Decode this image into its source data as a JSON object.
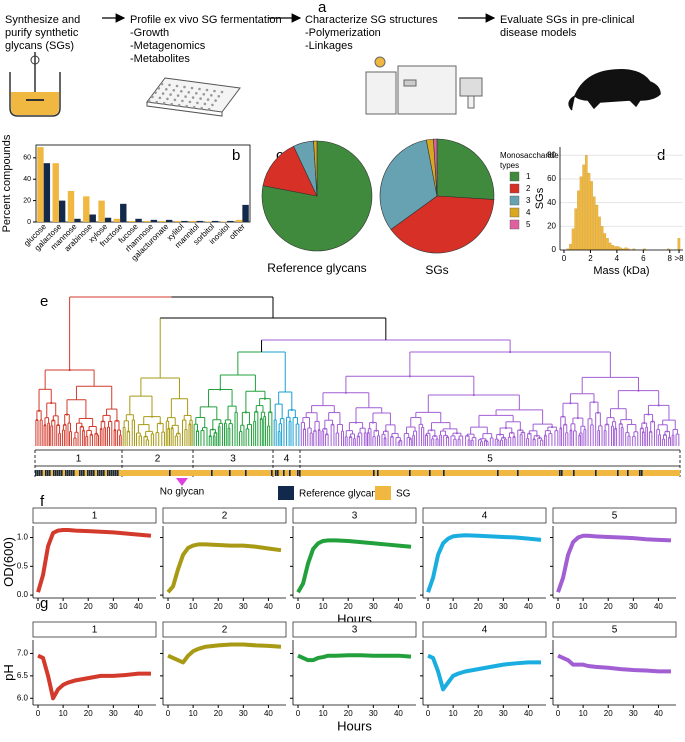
{
  "panel_labels": [
    "a",
    "b",
    "c",
    "d",
    "e",
    "f",
    "g"
  ],
  "workflow": [
    {
      "lines": [
        "Synthesize and",
        "purify synthetic",
        "glycans (SGs)"
      ]
    },
    {
      "lines": [
        "Profile ex vivo SG fermentation",
        "-Growth",
        "-Metagenomics",
        "-Metabolites"
      ]
    },
    {
      "lines": [
        "Characterize SG structures",
        "-Polymerization",
        "-Linkages"
      ]
    },
    {
      "lines": [
        "Evaluate SGs in pre-clinical",
        "disease models"
      ]
    }
  ],
  "dendrogram": {
    "clusters": [
      {
        "label": "1",
        "color": "#d33a2c"
      },
      {
        "label": "2",
        "color": "#a89a14"
      },
      {
        "label": "3",
        "color": "#22a03c"
      },
      {
        "label": "4",
        "color": "#1a9fd0"
      },
      {
        "label": "5",
        "color": "#a25fd4"
      }
    ],
    "annotation": "No glycan"
  },
  "chart_data": [
    {
      "type": "bar",
      "ylabel": "Percent compounds",
      "categories": [
        "glucose",
        "galactose",
        "mannose",
        "arabinose",
        "xylose",
        "fructose",
        "fucose",
        "rhamnose",
        "galacturonate",
        "xylitol",
        "mannitol",
        "sorbitol",
        "inositol",
        "other"
      ],
      "series": [
        {
          "name": "Reference glycan",
          "color": "#13294b",
          "values": [
            55,
            20,
            3,
            7,
            4,
            17,
            3,
            2,
            2,
            1,
            1,
            1,
            1,
            16
          ]
        },
        {
          "name": "SG",
          "color": "#f0b840",
          "values": [
            70,
            55,
            29,
            24,
            20,
            3,
            1,
            1,
            1,
            1,
            1,
            0.5,
            0.5,
            2
          ]
        }
      ],
      "ylim": [
        0,
        72
      ],
      "yticks": [
        0,
        20,
        40,
        60
      ]
    },
    {
      "type": "pie",
      "title": "Reference glycans",
      "categories": [
        "1",
        "2",
        "3",
        "4",
        "5"
      ],
      "values": [
        78,
        15,
        6,
        1,
        0
      ],
      "colors": [
        "#3f8a3c",
        "#d63027",
        "#66a2b2",
        "#d9a820",
        "#e060a0"
      ]
    },
    {
      "type": "pie",
      "title": "SGs",
      "legend_title": [
        "Monosaccharide",
        "types"
      ],
      "categories": [
        "1",
        "2",
        "3",
        "4",
        "5"
      ],
      "values": [
        26,
        39,
        32,
        2,
        1
      ],
      "colors": [
        "#3f8a3c",
        "#d63027",
        "#66a2b2",
        "#d9a820",
        "#e060a0"
      ]
    },
    {
      "type": "histogram",
      "xlabel": "Mass (kDa)",
      "ylabel": "SGs",
      "color": "#f0b840",
      "bins": [
        0,
        0.2,
        0.4,
        0.6,
        0.8,
        1.0,
        1.2,
        1.4,
        1.6,
        1.8,
        2.0,
        2.2,
        2.4,
        2.6,
        2.8,
        3.0,
        3.2,
        3.4,
        3.6,
        3.8,
        4.0,
        4.2,
        4.4,
        4.6,
        4.8,
        5.0,
        5.2,
        5.4,
        5.6,
        5.8,
        6.0,
        6.2,
        6.4,
        6.6,
        6.8,
        7.0,
        7.2,
        7.4,
        7.6,
        7.8,
        8.0,
        8.2,
        8.4,
        8.6,
        8.8
      ],
      "counts": [
        0,
        1,
        5,
        18,
        35,
        50,
        62,
        72,
        80,
        65,
        58,
        45,
        38,
        28,
        20,
        14,
        10,
        6,
        4,
        3,
        3,
        2,
        1,
        2,
        1,
        0,
        1,
        0,
        0,
        0,
        1,
        0,
        0,
        0,
        0,
        0,
        0,
        0,
        0,
        1,
        0,
        0,
        0,
        10
      ],
      "xlim": [
        -0.3,
        9.0
      ],
      "xticks": [
        0,
        2,
        4,
        6,
        8,
        {
          "value": 8.7,
          "label": ">8"
        }
      ],
      "ylim": [
        0,
        87
      ],
      "yticks": [
        0,
        20,
        40,
        60,
        80
      ]
    },
    {
      "type": "line",
      "ylabel": "OD(600)",
      "xlabel": "Hours",
      "x": [
        0,
        2,
        4,
        6,
        8,
        10,
        12,
        15,
        20,
        25,
        30,
        35,
        40,
        45
      ],
      "series": [
        {
          "name": "1",
          "color": "#d33a2c",
          "values": [
            0.05,
            0.35,
            0.85,
            1.08,
            1.12,
            1.13,
            1.13,
            1.12,
            1.11,
            1.1,
            1.09,
            1.07,
            1.05,
            1.03
          ]
        },
        {
          "name": "2",
          "color": "#a89a14",
          "values": [
            0.05,
            0.15,
            0.45,
            0.7,
            0.82,
            0.86,
            0.88,
            0.88,
            0.87,
            0.86,
            0.86,
            0.84,
            0.81,
            0.78
          ]
        },
        {
          "name": "3",
          "color": "#22a03c",
          "values": [
            0.05,
            0.2,
            0.55,
            0.8,
            0.9,
            0.94,
            0.95,
            0.95,
            0.94,
            0.92,
            0.9,
            0.88,
            0.86,
            0.84
          ]
        },
        {
          "name": "4",
          "color": "#1aaee0",
          "values": [
            0.05,
            0.3,
            0.7,
            0.9,
            0.98,
            1.02,
            1.03,
            1.04,
            1.03,
            1.02,
            1.01,
            1.0,
            0.98,
            0.96
          ]
        },
        {
          "name": "5",
          "color": "#a25fd4",
          "values": [
            0.05,
            0.3,
            0.7,
            0.92,
            1.0,
            1.03,
            1.03,
            1.02,
            1.01,
            1.0,
            0.99,
            0.97,
            0.96,
            0.95
          ]
        }
      ],
      "xlim": [
        -2,
        47
      ],
      "xticks": [
        0,
        10,
        20,
        30,
        40
      ],
      "ylim": [
        -0.05,
        1.2
      ],
      "yticks": [
        {
          "value": 0,
          "label": "0.0"
        },
        {
          "value": 0.5,
          "label": "0.5"
        },
        {
          "value": 1.0,
          "label": "1.0"
        }
      ]
    },
    {
      "type": "line",
      "ylabel": "pH",
      "xlabel": "Hours",
      "x": [
        0,
        2,
        4,
        6,
        8,
        10,
        12,
        15,
        20,
        25,
        30,
        35,
        40,
        45
      ],
      "series": [
        {
          "name": "1",
          "color": "#d33a2c",
          "values": [
            6.95,
            6.9,
            6.5,
            6.0,
            6.2,
            6.3,
            6.35,
            6.4,
            6.45,
            6.5,
            6.5,
            6.52,
            6.55,
            6.55
          ]
        },
        {
          "name": "2",
          "color": "#a89a14",
          "values": [
            6.95,
            6.9,
            6.85,
            6.8,
            6.95,
            7.05,
            7.1,
            7.15,
            7.18,
            7.2,
            7.2,
            7.18,
            7.17,
            7.15
          ]
        },
        {
          "name": "3",
          "color": "#22a03c",
          "values": [
            6.95,
            6.9,
            6.85,
            6.85,
            6.9,
            6.92,
            6.95,
            6.95,
            6.96,
            6.96,
            6.95,
            6.95,
            6.95,
            6.93
          ]
        },
        {
          "name": "4",
          "color": "#1aaee0",
          "values": [
            6.95,
            6.9,
            6.6,
            6.2,
            6.35,
            6.5,
            6.55,
            6.6,
            6.65,
            6.7,
            6.75,
            6.78,
            6.8,
            6.8
          ]
        },
        {
          "name": "5",
          "color": "#a25fd4",
          "values": [
            6.95,
            6.9,
            6.85,
            6.75,
            6.75,
            6.75,
            6.72,
            6.7,
            6.68,
            6.65,
            6.63,
            6.62,
            6.6,
            6.6
          ]
        }
      ],
      "xlim": [
        -2,
        47
      ],
      "xticks": [
        0,
        10,
        20,
        30,
        40
      ],
      "ylim": [
        5.85,
        7.3
      ],
      "yticks": [
        {
          "value": 6.0,
          "label": "6.0"
        },
        {
          "value": 6.5,
          "label": "6.5"
        },
        {
          "value": 7.0,
          "label": "7.0"
        }
      ]
    }
  ]
}
